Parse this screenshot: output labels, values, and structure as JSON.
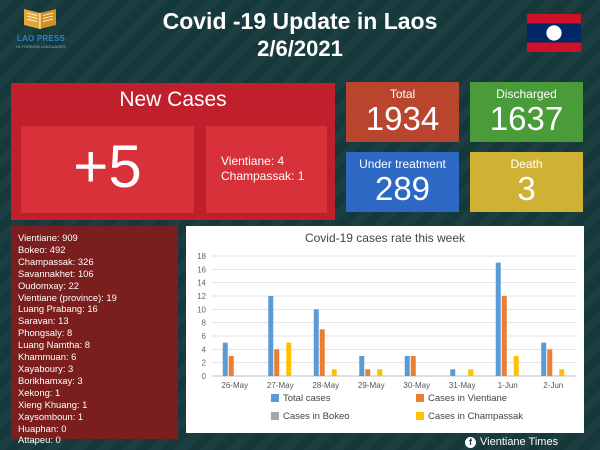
{
  "header": {
    "logo_text": "LAO PRESS",
    "logo_subtext": "IN FOREIGN LANGUAGES",
    "title": "Covid -19 Update in Laos",
    "date": "2/6/2021"
  },
  "new_cases": {
    "title": "New Cases",
    "count": "+5",
    "details": [
      "Vientiane: 4",
      "Champassak: 1"
    ]
  },
  "stats": {
    "total": {
      "label": "Total",
      "value": "1934",
      "color": "#b9452e"
    },
    "discharged": {
      "label": "Discharged",
      "value": "1637",
      "color": "#4a9c3a"
    },
    "under_treatment": {
      "label": "Under treatment",
      "value": "289",
      "color": "#2d69c4"
    },
    "death": {
      "label": "Death",
      "value": "3",
      "color": "#cfb234"
    }
  },
  "provinces": [
    "Vientiane: 909",
    "Bokeo: 492",
    "Champassak: 326",
    "Savannakhet: 106",
    "Oudomxay: 22",
    "Vientiane (province): 19",
    "Luang Prabang: 16",
    "Saravan: 13",
    "Phongsaly: 8",
    "Luang Namtha: 8",
    "Khammuan: 6",
    "Xayaboury: 3",
    "Borikhamxay: 3",
    "Xekong: 1",
    "Xieng Khuang: 1",
    "Xaysomboun: 1",
    "Huaphan: 0",
    "Attapeu: 0"
  ],
  "chart_data": {
    "type": "bar",
    "title": "Covid-19 cases rate this week",
    "categories": [
      "26-May",
      "27-May",
      "28-May",
      "29-May",
      "30-May",
      "31-May",
      "1-Jun",
      "2-Jun"
    ],
    "ylim": [
      0,
      18
    ],
    "yticks": [
      0,
      2,
      4,
      6,
      8,
      10,
      12,
      14,
      16,
      18
    ],
    "grid": true,
    "legend_position": "bottom",
    "series": [
      {
        "name": "Total cases",
        "color": "#5b9bd5",
        "values": [
          5,
          12,
          10,
          3,
          3,
          1,
          17,
          5
        ]
      },
      {
        "name": "Cases in Vientiane",
        "color": "#ed7d31",
        "values": [
          3,
          4,
          7,
          1,
          3,
          0,
          12,
          4
        ]
      },
      {
        "name": "Cases in Bokeo",
        "color": "#a5a5a5",
        "values": [
          0,
          0,
          0,
          0,
          0,
          0,
          0,
          0
        ]
      },
      {
        "name": "Cases in Champassak",
        "color": "#ffc000",
        "values": [
          0,
          5,
          1,
          1,
          0,
          1,
          3,
          1
        ]
      }
    ]
  },
  "footer": {
    "facebook_icon": "facebook-icon",
    "text": "Vientiane Times"
  }
}
